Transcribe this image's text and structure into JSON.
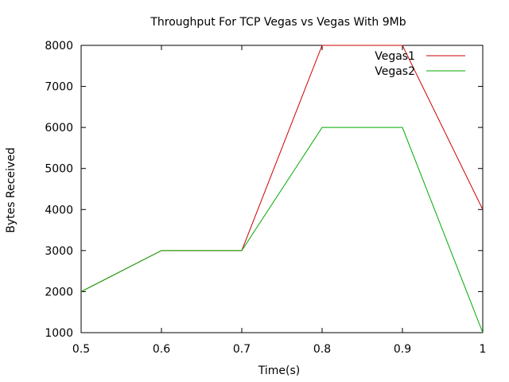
{
  "chart_data": {
    "type": "line",
    "title": "Throughput For TCP Vegas vs Vegas With 9Mb",
    "xlabel": "Time(s)",
    "ylabel": "Bytes Received",
    "xlim": [
      0.5,
      1
    ],
    "ylim": [
      1000,
      8000
    ],
    "x_ticks": [
      "0.5",
      "0.6",
      "0.7",
      "0.8",
      "0.9",
      "1"
    ],
    "y_ticks": [
      "1000",
      "2000",
      "3000",
      "4000",
      "5000",
      "6000",
      "7000",
      "8000"
    ],
    "grid": false,
    "legend_position": "top-right",
    "series": [
      {
        "name": "Vegas1",
        "color": "#cc0000",
        "x": [
          0.5,
          0.6,
          0.7,
          0.8,
          0.9,
          1.0
        ],
        "y": [
          2000,
          3000,
          3000,
          8000,
          8000,
          4000
        ]
      },
      {
        "name": "Vegas2",
        "color": "#00aa00",
        "x": [
          0.5,
          0.6,
          0.7,
          0.8,
          0.9,
          1.0
        ],
        "y": [
          2000,
          3000,
          3000,
          6000,
          6000,
          1000
        ]
      }
    ]
  }
}
